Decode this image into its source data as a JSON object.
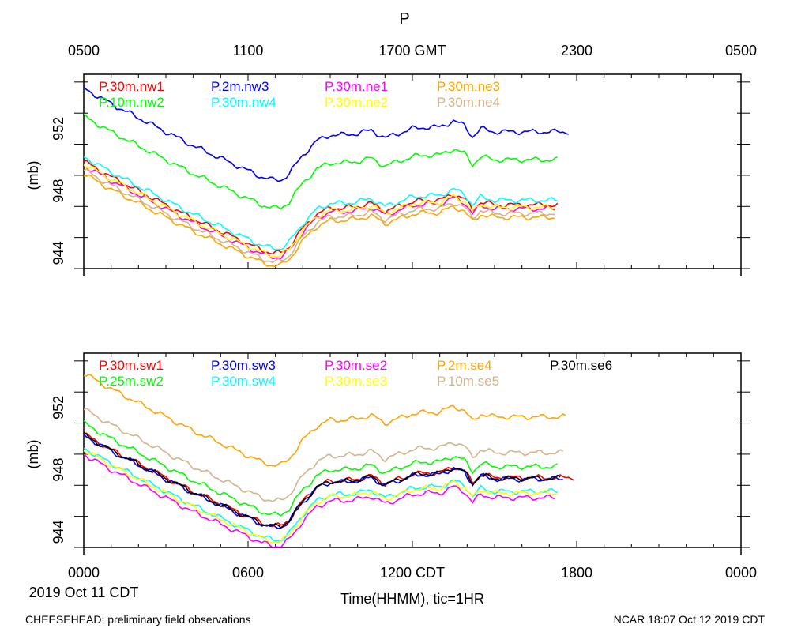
{
  "chart_data": {
    "type": "line",
    "title": "P",
    "top_axis": {
      "ticks": [
        0,
        6,
        12,
        18,
        24
      ],
      "tick_labels": [
        "0500",
        "1100",
        "1700 GMT",
        "2300",
        "0500"
      ]
    },
    "bottom_axis": {
      "ticks": [
        0,
        6,
        12,
        18,
        24
      ],
      "tick_labels": [
        "0000",
        "0600",
        "1200 CDT",
        "1800",
        "0000"
      ],
      "xlabel": "Time(HHMM), tic=1HR",
      "date_label": "2019 Oct 11 CDT"
    },
    "xlim": [
      0,
      24
    ],
    "ylabel": "(mb)",
    "panels": [
      {
        "ylim": [
          943,
          955.5
        ],
        "yticks": [
          944,
          948,
          952
        ],
        "base_profile_ref_series": "P.30m.nw1",
        "series": [
          {
            "name": "P.30m.nw1",
            "color": "#ff0000",
            "offset": 0
          },
          {
            "name": "P.10m.nw2",
            "color": "#00ff00",
            "offset": 2.9
          },
          {
            "name": "P.2m.nw3",
            "color": "#0000ff",
            "offset": 4.7
          },
          {
            "name": "P.30m.nw4",
            "color": "#00ffff",
            "offset": 0.3
          },
          {
            "name": "P.30m.ne1",
            "color": "#ff00ff",
            "offset": -0.25
          },
          {
            "name": "P.30m.ne2",
            "color": "#ffff00",
            "offset": -0.15
          },
          {
            "name": "P.30m.ne3",
            "color": "#ffa500",
            "offset": -0.8
          },
          {
            "name": "P.30m.ne4",
            "color": "#d2b48c",
            "offset": -0.55
          }
        ],
        "end_times": [
          17.3,
          17.3,
          17.7,
          17.3,
          17.2,
          17.2,
          17.2,
          17.2
        ]
      },
      {
        "ylim": [
          943,
          955.5
        ],
        "yticks": [
          944,
          948,
          952
        ],
        "series": [
          {
            "name": "P.30m.sw1",
            "color": "#ff0000",
            "offset": 0.4
          },
          {
            "name": "P.25m.sw2",
            "color": "#00ff00",
            "offset": 1.1
          },
          {
            "name": "P.30m.sw3",
            "color": "#0000ff",
            "offset": 0.3
          },
          {
            "name": "P.30m.sw4",
            "color": "#00ffff",
            "offset": -0.5
          },
          {
            "name": "P.30m.se2",
            "color": "#ff00ff",
            "offset": -0.9
          },
          {
            "name": "P.30m.se3",
            "color": "#ffff00",
            "offset": -0.6
          },
          {
            "name": "P.2m.se4",
            "color": "#ffa500",
            "offset": 4.3
          },
          {
            "name": "P.10m.se5",
            "color": "#d2b48c",
            "offset": 2.0
          },
          {
            "name": "P.30m.se6",
            "color": "#000000",
            "offset": 0.35
          }
        ],
        "end_times": [
          17.9,
          17.3,
          17.5,
          17.3,
          17.2,
          17.3,
          17.6,
          17.5,
          17.4
        ]
      }
    ],
    "base_profile": {
      "x": [
        0,
        1,
        2,
        3,
        4,
        5,
        6,
        6.5,
        6.9,
        7.2,
        7.5,
        8,
        8.5,
        9,
        9.5,
        10,
        10.5,
        11,
        11.5,
        12,
        12.5,
        13,
        13.5,
        13.9,
        14.2,
        14.5,
        15,
        16,
        17,
        18
      ],
      "y": [
        949.9,
        948.9,
        948.0,
        947.1,
        946.2,
        945.4,
        944.6,
        944.2,
        944.0,
        944.0,
        944.4,
        945.6,
        946.5,
        946.9,
        946.9,
        947.0,
        947.2,
        946.7,
        947.0,
        947.3,
        947.4,
        947.4,
        947.8,
        947.5,
        946.8,
        947.3,
        947.1,
        947.1,
        947.1,
        947.1
      ]
    }
  },
  "footer": {
    "left": "CHEESEHEAD: preliminary field observations",
    "right": "NCAR 18:07 Oct 12 2019 CDT"
  }
}
